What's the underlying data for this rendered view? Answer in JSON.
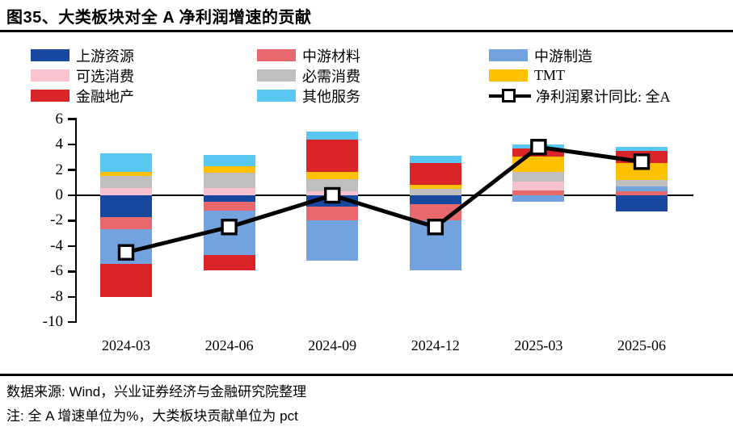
{
  "title": "图35、大类板块对全 A 净利润增速的贡献",
  "footer": {
    "source": "数据来源: Wind，兴业证券经济与金融研究院整理",
    "note": "注: 全 A 增速单位为%，大类板块贡献单位为 pct"
  },
  "chart_data": {
    "type": "bar",
    "stacked": true,
    "grid": false,
    "legend_position": "top",
    "categories": [
      "2024-03",
      "2024-06",
      "2024-09",
      "2024-12",
      "2025-03",
      "2025-06"
    ],
    "series": [
      {
        "name": "上游资源",
        "color": "#17479E",
        "values": [
          -1.7,
          -0.5,
          -0.9,
          -0.7,
          0,
          -1.3
        ]
      },
      {
        "name": "中游材料",
        "color": "#E8696D",
        "values": [
          -0.95,
          -0.7,
          -1.05,
          -1.3,
          0.4,
          0.3
        ]
      },
      {
        "name": "中游制造",
        "color": "#73A3DF",
        "values": [
          -2.75,
          -3.5,
          -3.2,
          -3.9,
          -0.5,
          0.4
        ]
      },
      {
        "name": "可选消费",
        "color": "#F8C2CE",
        "values": [
          0.6,
          0.6,
          0.3,
          0,
          0.65,
          0
        ]
      },
      {
        "name": "必需消费",
        "color": "#BFBFBF",
        "values": [
          0.9,
          1.2,
          1.0,
          0.5,
          0.8,
          0.5
        ]
      },
      {
        "name": "TMT",
        "color": "#FFC000",
        "values": [
          0.35,
          0.5,
          0.55,
          0.3,
          1.2,
          1.35
        ]
      },
      {
        "name": "金融地产",
        "color": "#DB2427",
        "values": [
          -2.6,
          -1.2,
          2.55,
          1.75,
          0.65,
          0.95
        ]
      },
      {
        "name": "其他服务",
        "color": "#58C8F2",
        "values": [
          1.45,
          0.9,
          0.65,
          0.55,
          0.3,
          0.3
        ]
      }
    ],
    "line_series": {
      "name": "净利润累计同比: 全A",
      "color": "#000000",
      "marker": "open-square",
      "values": [
        -4.5,
        -2.5,
        0.0,
        -2.5,
        3.8,
        2.65
      ]
    },
    "ylim": [
      -10,
      6
    ],
    "yticks": [
      6,
      4,
      2,
      0,
      -2,
      -4,
      -6,
      -8,
      -10
    ]
  }
}
